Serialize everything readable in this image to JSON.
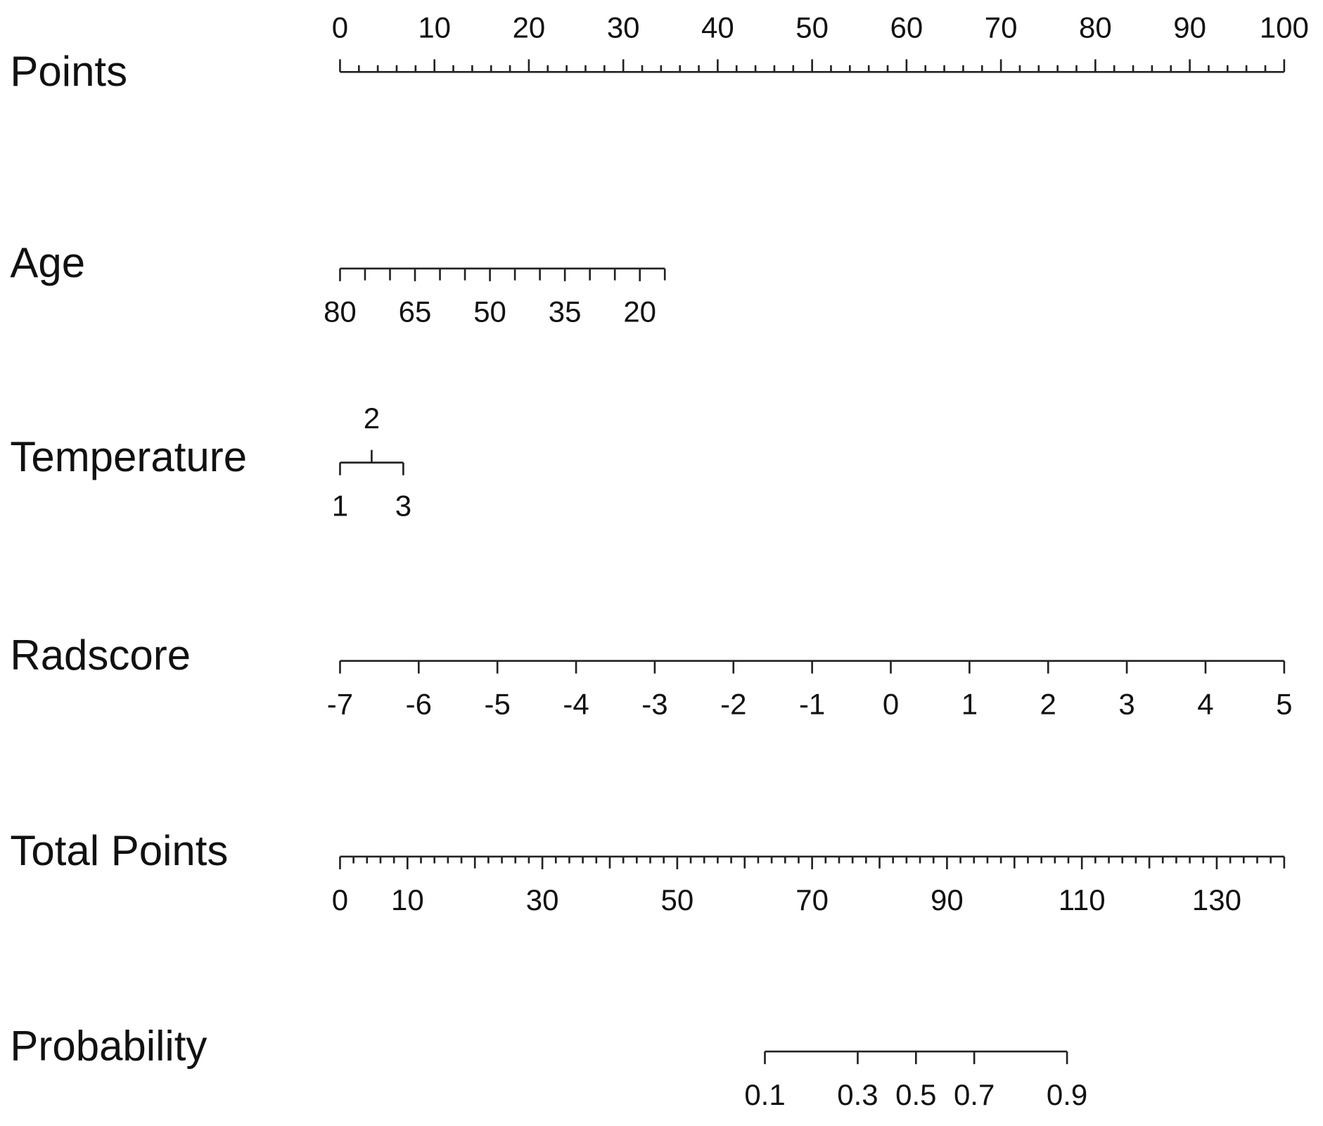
{
  "chart_data": {
    "type": "nomogram",
    "rows": [
      {
        "name": "Points",
        "lim": [
          0,
          100
        ],
        "points": [
          0,
          100
        ],
        "ticks": [
          0,
          10,
          20,
          30,
          40,
          50,
          60,
          70,
          80,
          90,
          100
        ],
        "minor_ticks": [
          2,
          4,
          6,
          8,
          12,
          14,
          16,
          18,
          22,
          24,
          26,
          28,
          32,
          34,
          36,
          38,
          42,
          44,
          46,
          48,
          52,
          54,
          56,
          58,
          62,
          64,
          66,
          68,
          72,
          74,
          76,
          78,
          82,
          84,
          86,
          88,
          92,
          94,
          96,
          98
        ]
      },
      {
        "name": "Age",
        "lim": [
          80,
          15
        ],
        "points": [
          0,
          34.4
        ],
        "ticks": [
          80,
          65,
          50,
          35,
          20
        ],
        "minor_ticks": [
          75,
          70,
          60,
          55,
          45,
          40,
          30,
          25,
          15
        ]
      },
      {
        "name": "Temperature",
        "lim": [
          1,
          3
        ],
        "points": [
          0,
          6.7
        ],
        "ticks": [
          1,
          2,
          3
        ],
        "minor_ticks": []
      },
      {
        "name": "Radscore",
        "lim": [
          -7,
          5
        ],
        "points": [
          0,
          100
        ],
        "ticks": [
          -7,
          -6,
          -5,
          -4,
          -3,
          -2,
          -1,
          0,
          1,
          2,
          3,
          4,
          5
        ],
        "minor_ticks": []
      },
      {
        "name": "Total Points",
        "lim": [
          0,
          140
        ],
        "points": [
          0,
          100
        ],
        "ticks": [
          0,
          10,
          30,
          50,
          70,
          90,
          110,
          130
        ],
        "minor_ticks": [
          2,
          4,
          6,
          8,
          12,
          14,
          16,
          18,
          20,
          22,
          24,
          26,
          28,
          32,
          34,
          36,
          38,
          40,
          42,
          44,
          46,
          48,
          52,
          54,
          56,
          58,
          60,
          62,
          64,
          66,
          68,
          72,
          74,
          76,
          78,
          80,
          82,
          84,
          86,
          88,
          92,
          94,
          96,
          98,
          100,
          102,
          104,
          106,
          108,
          112,
          114,
          116,
          118,
          120,
          122,
          124,
          126,
          128,
          132,
          134,
          136,
          138,
          140
        ]
      },
      {
        "name": "Probability",
        "lim": [
          0.1,
          0.9
        ],
        "total_points": [
          63,
          107.8
        ],
        "scale": "logit",
        "ticks": [
          0.1,
          0.3,
          0.5,
          0.7,
          0.9
        ],
        "minor_ticks": []
      }
    ]
  }
}
